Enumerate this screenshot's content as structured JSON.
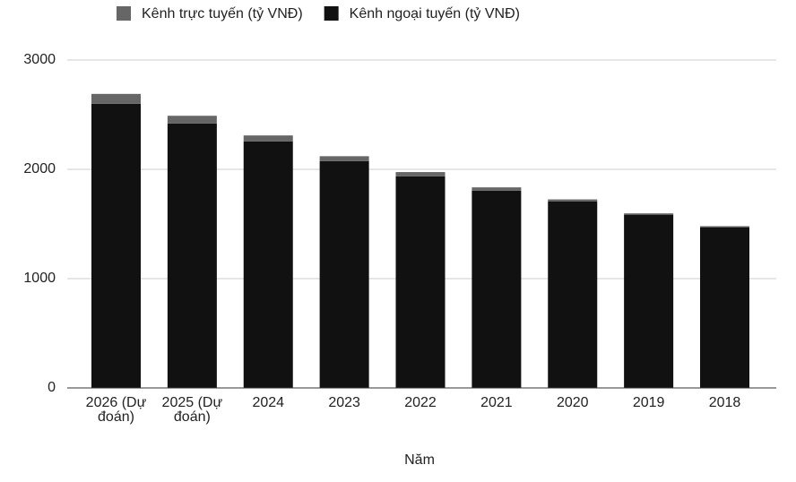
{
  "chart_data": {
    "type": "stacked_bar",
    "x_label": "Năm",
    "categories": [
      "2026 (Dự đoán)",
      "2025 (Dự đoán)",
      "2024",
      "2023",
      "2022",
      "2021",
      "2020",
      "2019",
      "2018"
    ],
    "series": [
      {
        "name": "Kênh trực tuyến (tỷ VNĐ)",
        "color": "#666666",
        "values": [
          90,
          70,
          55,
          45,
          40,
          30,
          20,
          12,
          10
        ]
      },
      {
        "name": "Kênh ngoại tuyến (tỷ VNĐ)",
        "color": "#111111",
        "values": [
          2600,
          2420,
          2255,
          2075,
          1935,
          1805,
          1705,
          1585,
          1470
        ]
      }
    ],
    "ylim": [
      0,
      3000
    ],
    "yticks": [
      0,
      1000,
      2000,
      3000
    ],
    "grid": true,
    "legend": "top"
  }
}
